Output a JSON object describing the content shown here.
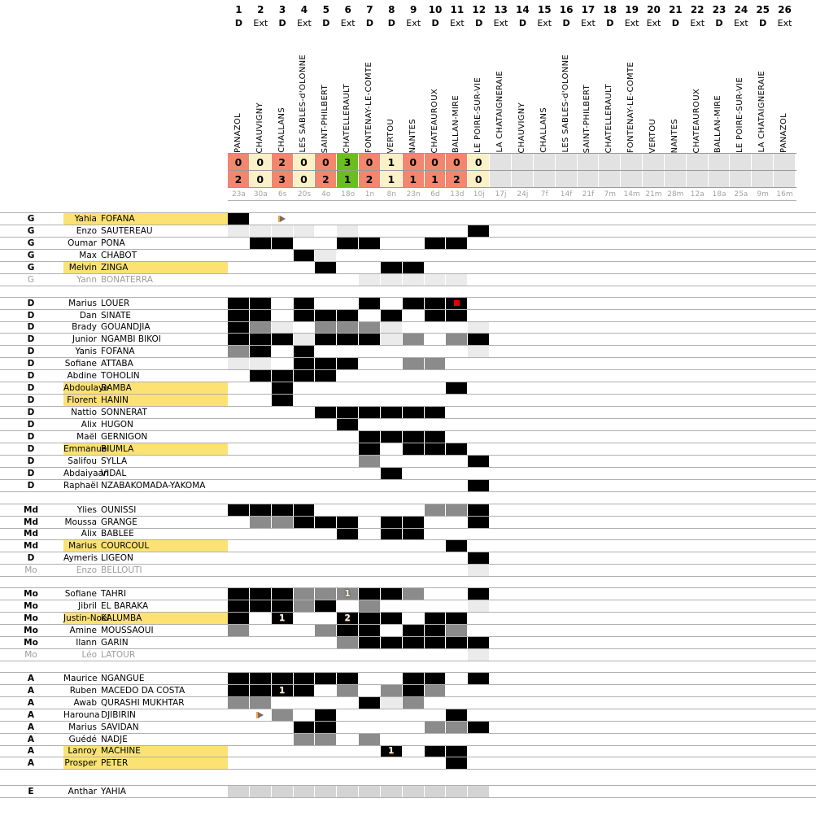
{
  "palette": {
    "win": "#6abe20",
    "draw": "#faf1c6",
    "loss": "#f2876e",
    "future": "#e2e2e2",
    "starter": "#000000",
    "substitute": "#8b8b8b",
    "bench": "#ebebeb",
    "staff": "#d4d4d4",
    "highlight": "#fbe273",
    "inactive_text": "#9c9c9c",
    "red_card": "#e60000",
    "sub_arrow": "#6f6f6f"
  },
  "matches": [
    {
      "num": "1",
      "venue": "D",
      "opponent": "PANAZOL",
      "home": "0",
      "away": "2",
      "result": "loss",
      "date": "23a"
    },
    {
      "num": "2",
      "venue": "Ext",
      "opponent": "CHAUVIGNY",
      "home": "0",
      "away": "0",
      "result": "draw",
      "date": "30a"
    },
    {
      "num": "3",
      "venue": "D",
      "opponent": "CHALLANS",
      "home": "2",
      "away": "3",
      "result": "loss",
      "date": "6s"
    },
    {
      "num": "4",
      "venue": "Ext",
      "opponent": "LES SABLES-d'OLONNE",
      "home": "0",
      "away": "0",
      "result": "draw",
      "date": "20s"
    },
    {
      "num": "5",
      "venue": "D",
      "opponent": "SAINT-PHILBERT",
      "home": "0",
      "away": "2",
      "result": "loss",
      "date": "4o"
    },
    {
      "num": "6",
      "venue": "Ext",
      "opponent": "CHATELLERAULT",
      "home": "3",
      "away": "1",
      "result": "win",
      "date": "18o"
    },
    {
      "num": "7",
      "venue": "D",
      "opponent": "FONTENAY-LE-COMTE",
      "home": "0",
      "away": "2",
      "result": "loss",
      "date": "1n"
    },
    {
      "num": "8",
      "venue": "D",
      "opponent": "VERTOU",
      "home": "1",
      "away": "1",
      "result": "draw",
      "date": "8n"
    },
    {
      "num": "9",
      "venue": "Ext",
      "opponent": "NANTES",
      "home": "0",
      "away": "1",
      "result": "loss",
      "date": "23n"
    },
    {
      "num": "10",
      "venue": "D",
      "opponent": "CHATEAUROUX",
      "home": "0",
      "away": "1",
      "result": "loss",
      "date": "6d"
    },
    {
      "num": "11",
      "venue": "Ext",
      "opponent": "BALLAN-MIRE",
      "home": "0",
      "away": "2",
      "result": "loss",
      "date": "13d"
    },
    {
      "num": "12",
      "venue": "D",
      "opponent": "LE POIRE-SUR-VIE",
      "home": "0",
      "away": "0",
      "result": "draw",
      "date": "10j"
    },
    {
      "num": "13",
      "venue": "Ext",
      "opponent": "LA CHATAIGNERAIE",
      "home": "",
      "away": "",
      "result": "future",
      "date": "17j"
    },
    {
      "num": "14",
      "venue": "D",
      "opponent": "CHAUVIGNY",
      "home": "",
      "away": "",
      "result": "future",
      "date": "24j"
    },
    {
      "num": "15",
      "venue": "Ext",
      "opponent": "CHALLANS",
      "home": "",
      "away": "",
      "result": "future",
      "date": "7f"
    },
    {
      "num": "16",
      "venue": "D",
      "opponent": "LES SABLES-d'OLONNE",
      "home": "",
      "away": "",
      "result": "future",
      "date": "14f"
    },
    {
      "num": "17",
      "venue": "Ext",
      "opponent": "SAINT-PHILBERT",
      "home": "",
      "away": "",
      "result": "future",
      "date": "21f"
    },
    {
      "num": "18",
      "venue": "D",
      "opponent": "CHATELLERAULT",
      "home": "",
      "away": "",
      "result": "future",
      "date": "7m"
    },
    {
      "num": "19",
      "venue": "Ext",
      "opponent": "FONTENAY-LE-COMTE",
      "home": "",
      "away": "",
      "result": "future",
      "date": "14m"
    },
    {
      "num": "20",
      "venue": "Ext",
      "opponent": "VERTOU",
      "home": "",
      "away": "",
      "result": "future",
      "date": "21m"
    },
    {
      "num": "21",
      "venue": "D",
      "opponent": "NANTES",
      "home": "",
      "away": "",
      "result": "future",
      "date": "28m"
    },
    {
      "num": "22",
      "venue": "Ext",
      "opponent": "CHATEAUROUX",
      "home": "",
      "away": "",
      "result": "future",
      "date": "12a"
    },
    {
      "num": "23",
      "venue": "D",
      "opponent": "BALLAN-MIRE",
      "home": "",
      "away": "",
      "result": "future",
      "date": "18a"
    },
    {
      "num": "24",
      "venue": "Ext",
      "opponent": "LE POIRE-SUR-VIE",
      "home": "",
      "away": "",
      "result": "future",
      "date": "25a"
    },
    {
      "num": "25",
      "venue": "D",
      "opponent": "LA CHATAIGNERAIE",
      "home": "",
      "away": "",
      "result": "future",
      "date": "9m"
    },
    {
      "num": "26",
      "venue": "Ext",
      "opponent": "PANAZOL",
      "home": "",
      "away": "",
      "result": "future",
      "date": "16m"
    }
  ],
  "cell_legend": {
    "T": "starter",
    "S": "substitute-played",
    "B": "bench-unused",
    "E": "staff-present",
    ".": "absent"
  },
  "sections": [
    {
      "id": "g",
      "players": [
        {
          "pos": "G",
          "first": "Yahia",
          "last": "FOFANA",
          "highlight": true,
          "cells": "T.........................",
          "arrows": [
            3
          ]
        },
        {
          "pos": "G",
          "first": "Enzo",
          "last": "SAUTEREAU",
          "cells": "BBBB.B.....T.............."
        },
        {
          "pos": "G",
          "first": "Oumar",
          "last": "PONA",
          "cells": ".TT..TT..TT..............."
        },
        {
          "pos": "G",
          "first": "Max",
          "last": "CHABOT",
          "cells": "...TB....................."
        },
        {
          "pos": "G",
          "first": "Melvin",
          "last": "ZINGA",
          "highlight": true,
          "cells": "....T..TT................."
        },
        {
          "pos": "G",
          "first": "Yann",
          "last": "BONATERRA",
          "inactive": true,
          "cells": "......BBBBB..............."
        }
      ]
    },
    {
      "id": "d",
      "players": [
        {
          "pos": "D",
          "first": "Marius",
          "last": "LOUER",
          "cells": "TT.T..T.TTT...............",
          "redcards": [
            11
          ]
        },
        {
          "pos": "D",
          "first": "Dan",
          "last": "SINATE",
          "cells": "TT.TTT.T.TT..............."
        },
        {
          "pos": "D",
          "first": "Brady",
          "last": "GOUANDJIA",
          "cells": "TSB.SSSB...B.............."
        },
        {
          "pos": "D",
          "first": "Junior",
          "last": "NGAMBI BIKOI",
          "cells": "TTTBTTTBS.ST.............."
        },
        {
          "pos": "D",
          "first": "Yanis",
          "last": "FOFANA",
          "cells": "ST.T.......B.............."
        },
        {
          "pos": "D",
          "first": "Sofiane",
          "last": "ATTABA",
          "cells": "BB.TTT..SS................"
        },
        {
          "pos": "D",
          "first": "Abdine",
          "last": "TOHOLIN",
          "cells": ".TTTT....................."
        },
        {
          "pos": "D",
          "first": "Abdoulaye",
          "last": "BAMBA",
          "highlight": true,
          "cells": "..T.......T..............."
        },
        {
          "pos": "D",
          "first": "Florent",
          "last": "HANIN",
          "highlight": true,
          "cells": "..T......................."
        },
        {
          "pos": "D",
          "first": "Nattio",
          "last": "SONNERAT",
          "cells": "....TTTTTT................"
        },
        {
          "pos": "D",
          "first": "Alix",
          "last": "HUGON",
          "cells": ".....T...................."
        },
        {
          "pos": "D",
          "first": "Maël",
          "last": "GERNIGON",
          "cells": "......TTTT................"
        },
        {
          "pos": "D",
          "first": "Emmanuel",
          "last": "BIUMLA",
          "highlight": true,
          "cells": "......T.TTT..............."
        },
        {
          "pos": "D",
          "first": "Salifou",
          "last": "SYLLA",
          "cells": "......S....T.............."
        },
        {
          "pos": "D",
          "first": "Abdaiyaan",
          "last": "VIDAL",
          "cells": ".......T.................."
        },
        {
          "pos": "D",
          "first": "Raphaël",
          "last": "NZABAKOMADA-YAKOMA",
          "cells": "...........T.............."
        }
      ]
    },
    {
      "id": "md",
      "players": [
        {
          "pos": "Md",
          "first": "Ylies",
          "last": "OUNISSI",
          "cells": "TTTT.....SST.............."
        },
        {
          "pos": "Md",
          "first": "Moussa",
          "last": "GRANGE",
          "cells": ".SSTTT.TT..T.............."
        },
        {
          "pos": "Md",
          "first": "Alix",
          "last": "BABLEE",
          "cells": ".....T.TT................."
        },
        {
          "pos": "Md",
          "first": "Marius",
          "last": "COURCOUL",
          "highlight": true,
          "cells": "..........T..............."
        },
        {
          "pos": "D",
          "first": "Aymeris",
          "last": "LIGEON",
          "cells": "...........T.............."
        },
        {
          "pos": "Mo",
          "first": "Enzo",
          "last": "BELLOUTI",
          "inactive": true,
          "cells": "...........B.............."
        }
      ]
    },
    {
      "id": "mo",
      "players": [
        {
          "pos": "Mo",
          "first": "Sofiane",
          "last": "TAHRI",
          "cells": "TTTSSSTTS..T..............",
          "goals": {
            "6": "1"
          }
        },
        {
          "pos": "Mo",
          "first": "Jibril",
          "last": "EL BARAKA",
          "cells": "TTTST.S....B.............."
        },
        {
          "pos": "Mo",
          "first": "Justin-Noël",
          "last": "KALUMBA",
          "highlight": true,
          "cells": "T.T..TTT.TT...............",
          "goals": {
            "3": "1",
            "6": "2"
          }
        },
        {
          "pos": "Mo",
          "first": "Amine",
          "last": "MOUSSAOUI",
          "cells": "S...STT.TTS..............."
        },
        {
          "pos": "Mo",
          "first": "Ilann",
          "last": "GARIN",
          "cells": ".....STTTTTT.............."
        },
        {
          "pos": "Mo",
          "first": "Léo",
          "last": "LATOUR",
          "inactive": true,
          "cells": "...........B.............."
        }
      ]
    },
    {
      "id": "a",
      "players": [
        {
          "pos": "A",
          "first": "Maurice",
          "last": "NGANGUE",
          "cells": "TTTTTT..TT.T.............."
        },
        {
          "pos": "A",
          "first": "Ruben",
          "last": "MACEDO DA COSTA",
          "cells": "TTTT.S.STS................",
          "goals": {
            "3": "1"
          }
        },
        {
          "pos": "A",
          "first": "Awab",
          "last": "QURASHI MUKHTAR",
          "cells": "SS....TBS................."
        },
        {
          "pos": "A",
          "first": "Harouna",
          "last": "DJIBIRIN",
          "cells": "..S.T.....T...............",
          "arrows": [
            2
          ]
        },
        {
          "pos": "A",
          "first": "Marius",
          "last": "SAVIDAN",
          "cells": "...TT....SST.............."
        },
        {
          "pos": "A",
          "first": "Guédé",
          "last": "NADJE",
          "cells": "...SS.S..................."
        },
        {
          "pos": "A",
          "first": "Lanroy",
          "last": "MACHINE",
          "highlight": true,
          "cells": ".......T.TT...............",
          "goals": {
            "8": "1"
          }
        },
        {
          "pos": "A",
          "first": "Prosper",
          "last": "PETER",
          "highlight": true,
          "cells": "..........T..............."
        }
      ]
    },
    {
      "id": "e",
      "players": [
        {
          "pos": "E",
          "first": "Anthar",
          "last": "YAHIA",
          "cells": "EEEEEEEEEEEE.............."
        }
      ]
    }
  ]
}
